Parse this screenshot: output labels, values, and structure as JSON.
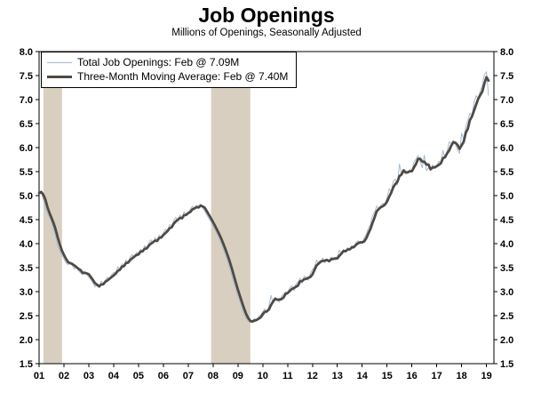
{
  "title": "Job Openings",
  "subtitle": "Millions of Openings, Seasonally Adjusted",
  "legend": {
    "series1": "Total Job Openings: Feb @ 7.09M",
    "series2": "Three-Month Moving Average: Feb @ 7.40M"
  },
  "chart_data": {
    "type": "line",
    "title": "Job Openings",
    "subtitle": "Millions of Openings, Seasonally Adjusted",
    "x_start_year": 2001,
    "x_frequency": "monthly",
    "xlim": [
      2001.0,
      2019.3
    ],
    "ylim": [
      1.5,
      8.0
    ],
    "ytick_step": 0.5,
    "y_axis_both_sides": true,
    "grid": false,
    "legend_position": "top-left",
    "xtick_labels": [
      "01",
      "02",
      "03",
      "04",
      "05",
      "06",
      "07",
      "08",
      "09",
      "10",
      "11",
      "12",
      "13",
      "14",
      "15",
      "16",
      "17",
      "18",
      "19"
    ],
    "recession_color": "#d9cfc0",
    "recession_bands": [
      {
        "start": 2001.17,
        "end": 2001.92
      },
      {
        "start": 2007.92,
        "end": 2009.5
      }
    ],
    "series": [
      {
        "name": "Total Job Openings",
        "last_label": "Feb @ 7.09M",
        "color": "#a5bbd3",
        "width": 1,
        "values": [
          5.05,
          5.1,
          4.92,
          4.75,
          4.62,
          4.55,
          4.44,
          4.29,
          4.15,
          3.95,
          3.85,
          3.77,
          3.68,
          3.6,
          3.56,
          3.62,
          3.55,
          3.47,
          3.52,
          3.44,
          3.39,
          3.35,
          3.43,
          3.36,
          3.3,
          3.25,
          3.18,
          3.1,
          3.15,
          3.08,
          3.22,
          3.16,
          3.24,
          3.3,
          3.26,
          3.35,
          3.4,
          3.38,
          3.52,
          3.46,
          3.58,
          3.55,
          3.66,
          3.6,
          3.72,
          3.77,
          3.7,
          3.82,
          3.8,
          3.88,
          3.84,
          3.96,
          3.9,
          4.02,
          4.08,
          3.99,
          4.12,
          4.06,
          4.18,
          4.14,
          4.22,
          4.3,
          4.26,
          4.4,
          4.36,
          4.48,
          4.55,
          4.46,
          4.6,
          4.52,
          4.66,
          4.61,
          4.64,
          4.72,
          4.78,
          4.7,
          4.8,
          4.76,
          4.82,
          4.74,
          4.68,
          4.6,
          4.52,
          4.46,
          4.36,
          4.28,
          4.2,
          4.1,
          4.0,
          3.88,
          3.76,
          3.64,
          3.5,
          3.34,
          3.18,
          3.04,
          2.9,
          2.78,
          2.64,
          2.52,
          2.44,
          2.38,
          2.35,
          2.4,
          2.44,
          2.39,
          2.48,
          2.52,
          2.58,
          2.64,
          2.55,
          2.7,
          2.92,
          2.76,
          2.88,
          2.85,
          2.78,
          2.9,
          2.95,
          3.0,
          2.96,
          3.08,
          3.12,
          3.02,
          3.16,
          3.2,
          3.28,
          3.18,
          3.32,
          3.3,
          3.24,
          3.38,
          3.46,
          3.52,
          3.66,
          3.58,
          3.64,
          3.7,
          3.6,
          3.68,
          3.62,
          3.72,
          3.7,
          3.66,
          3.72,
          3.86,
          3.8,
          3.88,
          3.84,
          3.92,
          3.88,
          3.96,
          3.94,
          4.02,
          4.06,
          4.0,
          4.02,
          4.12,
          4.2,
          4.32,
          4.4,
          4.58,
          4.66,
          4.78,
          4.72,
          4.78,
          4.84,
          4.82,
          4.96,
          5.14,
          5.08,
          5.3,
          5.34,
          5.22,
          5.66,
          5.44,
          5.48,
          5.52,
          5.46,
          5.54,
          5.52,
          5.7,
          5.76,
          5.84,
          5.7,
          5.58,
          5.84,
          5.52,
          5.58,
          5.54,
          5.64,
          5.58,
          5.62,
          5.72,
          5.68,
          5.94,
          5.78,
          5.92,
          6.12,
          6.08,
          6.14,
          6.08,
          5.96,
          5.88,
          6.3,
          6.18,
          6.44,
          6.56,
          6.72,
          6.66,
          6.94,
          7.08,
          7.02,
          7.18,
          7.3,
          7.52,
          7.58,
          7.09
        ]
      },
      {
        "name": "Three-Month Moving Average",
        "last_label": "Feb @ 7.40M",
        "color": "#4f4a44",
        "width": 2.8,
        "derived": "trailing-3-month-moving-average-of-series-0"
      }
    ]
  }
}
